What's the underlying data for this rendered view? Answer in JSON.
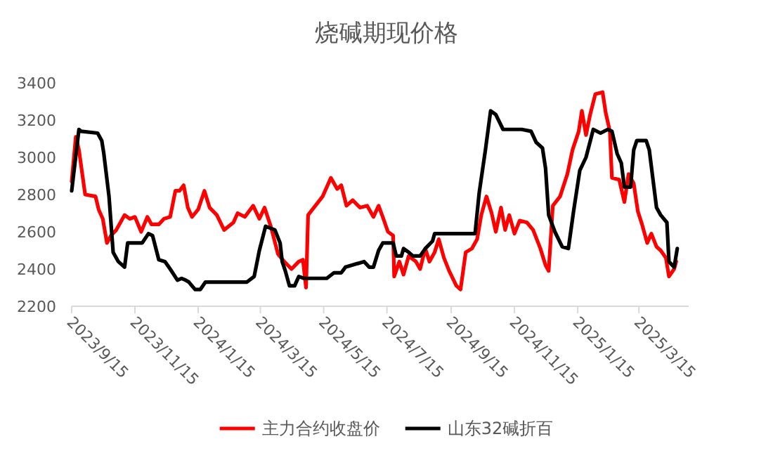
{
  "chart_data": {
    "type": "line",
    "title": "烧碱期现价格",
    "xlim": [
      "2023-09-15",
      "2025-05-02"
    ],
    "xticks": [
      {
        "value": "2023-09-15",
        "label": "2023/9/15"
      },
      {
        "value": "2023-11-15",
        "label": "2023/11/15"
      },
      {
        "value": "2024-01-15",
        "label": "2024/1/15"
      },
      {
        "value": "2024-03-15",
        "label": "2024/3/15"
      },
      {
        "value": "2024-05-15",
        "label": "2024/5/15"
      },
      {
        "value": "2024-07-15",
        "label": "2024/7/15"
      },
      {
        "value": "2024-09-15",
        "label": "2024/9/15"
      },
      {
        "value": "2024-11-15",
        "label": "2024/11/15"
      },
      {
        "value": "2025-01-15",
        "label": "2025/1/15"
      },
      {
        "value": "2025-03-15",
        "label": "2025/3/15"
      }
    ],
    "ylim": [
      2200,
      3400
    ],
    "yticks": [
      2200,
      2400,
      2600,
      2800,
      3000,
      3200,
      3400
    ],
    "legend": "bottom",
    "series": [
      {
        "name": "主力合约收盘价",
        "color": "#ff0000",
        "x": [
          "2023-09-15",
          "2023-09-19",
          "2023-09-22",
          "2023-09-28",
          "2023-10-08",
          "2023-10-11",
          "2023-10-15",
          "2023-10-19",
          "2023-10-23",
          "2023-10-28",
          "2023-11-01",
          "2023-11-05",
          "2023-11-10",
          "2023-11-15",
          "2023-11-21",
          "2023-11-27",
          "2023-12-01",
          "2023-12-08",
          "2023-12-13",
          "2023-12-19",
          "2023-12-24",
          "2023-12-28",
          "2024-01-01",
          "2024-01-05",
          "2024-01-09",
          "2024-01-15",
          "2024-01-21",
          "2024-01-26",
          "2024-02-02",
          "2024-02-09",
          "2024-02-18",
          "2024-02-22",
          "2024-02-29",
          "2024-03-08",
          "2024-03-14",
          "2024-03-19",
          "2024-03-25",
          "2024-04-01",
          "2024-04-07",
          "2024-04-14",
          "2024-04-21",
          "2024-04-25",
          "2024-04-28",
          "2024-04-30",
          "2024-05-07",
          "2024-05-14",
          "2024-05-22",
          "2024-05-28",
          "2024-06-01",
          "2024-06-06",
          "2024-06-12",
          "2024-06-19",
          "2024-06-26",
          "2024-07-02",
          "2024-07-07",
          "2024-07-11",
          "2024-07-16",
          "2024-07-21",
          "2024-07-22",
          "2024-07-27",
          "2024-07-31",
          "2024-08-05",
          "2024-08-12",
          "2024-08-16",
          "2024-08-21",
          "2024-08-25",
          "2024-08-30",
          "2024-09-03",
          "2024-09-08",
          "2024-09-13",
          "2024-09-20",
          "2024-09-24",
          "2024-09-29",
          "2024-10-05",
          "2024-10-10",
          "2024-10-14",
          "2024-10-19",
          "2024-10-24",
          "2024-10-28",
          "2024-11-02",
          "2024-11-06",
          "2024-11-10",
          "2024-11-15",
          "2024-11-20",
          "2024-11-27",
          "2024-12-03",
          "2024-12-10",
          "2024-12-15",
          "2024-12-18",
          "2024-12-22",
          "2024-12-29",
          "2025-01-05",
          "2025-01-10",
          "2025-01-16",
          "2025-01-19",
          "2025-01-23",
          "2025-01-27",
          "2025-02-01",
          "2025-02-08",
          "2025-02-11",
          "2025-02-15",
          "2025-02-17",
          "2025-02-24",
          "2025-03-01",
          "2025-03-05",
          "2025-03-10",
          "2025-03-14",
          "2025-03-18",
          "2025-03-23",
          "2025-03-27",
          "2025-04-01",
          "2025-04-05",
          "2025-04-10",
          "2025-04-13",
          "2025-04-18",
          "2025-04-20"
        ],
        "values": [
          2870,
          3110,
          3040,
          2800,
          2790,
          2720,
          2670,
          2540,
          2580,
          2610,
          2650,
          2690,
          2670,
          2680,
          2600,
          2680,
          2640,
          2640,
          2670,
          2680,
          2820,
          2820,
          2850,
          2730,
          2680,
          2720,
          2820,
          2730,
          2690,
          2610,
          2650,
          2700,
          2680,
          2740,
          2670,
          2730,
          2630,
          2480,
          2440,
          2400,
          2440,
          2450,
          2300,
          2690,
          2740,
          2790,
          2890,
          2830,
          2850,
          2740,
          2770,
          2730,
          2740,
          2680,
          2740,
          2680,
          2600,
          2580,
          2360,
          2440,
          2370,
          2470,
          2440,
          2400,
          2510,
          2440,
          2490,
          2560,
          2460,
          2390,
          2310,
          2290,
          2490,
          2510,
          2560,
          2690,
          2790,
          2700,
          2600,
          2730,
          2610,
          2690,
          2590,
          2660,
          2650,
          2610,
          2510,
          2420,
          2390,
          2740,
          2790,
          2910,
          3040,
          3140,
          3250,
          3120,
          3230,
          3340,
          3350,
          3240,
          3140,
          2890,
          2880,
          2760,
          2910,
          2860,
          2710,
          2640,
          2540,
          2590,
          2520,
          2500,
          2460,
          2360,
          2400,
          2440
        ]
      },
      {
        "name": "山东32碱折百",
        "color": "#000000",
        "x": [
          "2023-09-15",
          "2023-09-22",
          "2023-09-24",
          "2023-10-10",
          "2023-10-14",
          "2023-10-16",
          "2023-10-21",
          "2023-10-25",
          "2023-10-30",
          "2023-11-05",
          "2023-11-08",
          "2023-11-22",
          "2023-11-28",
          "2023-12-02",
          "2023-12-08",
          "2023-12-14",
          "2023-12-19",
          "2023-12-26",
          "2023-12-30",
          "2024-01-03",
          "2024-01-06",
          "2024-01-12",
          "2024-01-17",
          "2024-01-22",
          "2024-03-02",
          "2024-03-09",
          "2024-03-14",
          "2024-03-20",
          "2024-03-29",
          "2024-04-03",
          "2024-04-05",
          "2024-04-08",
          "2024-04-12",
          "2024-04-17",
          "2024-04-21",
          "2024-04-26",
          "2024-05-18",
          "2024-05-25",
          "2024-06-01",
          "2024-06-05",
          "2024-06-23",
          "2024-06-28",
          "2024-07-02",
          "2024-07-07",
          "2024-07-11",
          "2024-07-21",
          "2024-07-24",
          "2024-07-29",
          "2024-07-31",
          "2024-08-05",
          "2024-08-09",
          "2024-08-16",
          "2024-08-21",
          "2024-08-28",
          "2024-08-30",
          "2024-10-08",
          "2024-10-12",
          "2024-10-18",
          "2024-10-23",
          "2024-10-28",
          "2024-11-04",
          "2024-11-18",
          "2024-11-22",
          "2024-12-01",
          "2024-12-06",
          "2024-12-12",
          "2024-12-15",
          "2024-12-18",
          "2024-12-24",
          "2024-12-31",
          "2025-01-06",
          "2025-01-11",
          "2025-01-17",
          "2025-01-23",
          "2025-01-30",
          "2025-02-06",
          "2025-02-13",
          "2025-02-17",
          "2025-02-22",
          "2025-02-26",
          "2025-03-01",
          "2025-03-07",
          "2025-03-10",
          "2025-03-13",
          "2025-03-22",
          "2025-03-25",
          "2025-04-01",
          "2025-04-05",
          "2025-04-11",
          "2025-04-13",
          "2025-04-18",
          "2025-04-21"
        ],
        "values": [
          2820,
          3150,
          3140,
          3130,
          3090,
          3020,
          2790,
          2490,
          2440,
          2410,
          2540,
          2540,
          2590,
          2580,
          2450,
          2440,
          2400,
          2340,
          2350,
          2340,
          2330,
          2290,
          2290,
          2330,
          2330,
          2360,
          2500,
          2630,
          2610,
          2540,
          2440,
          2390,
          2310,
          2310,
          2360,
          2350,
          2350,
          2380,
          2380,
          2410,
          2440,
          2410,
          2410,
          2500,
          2540,
          2540,
          2470,
          2470,
          2510,
          2490,
          2470,
          2470,
          2510,
          2550,
          2590,
          2590,
          2810,
          3040,
          3250,
          3230,
          3150,
          3150,
          3150,
          3140,
          3080,
          3050,
          2940,
          2690,
          2600,
          2520,
          2510,
          2710,
          2930,
          3000,
          3150,
          3130,
          3150,
          3140,
          3020,
          2970,
          2840,
          2840,
          3040,
          3090,
          3090,
          3040,
          2730,
          2690,
          2650,
          2440,
          2410,
          2510
        ]
      }
    ]
  }
}
